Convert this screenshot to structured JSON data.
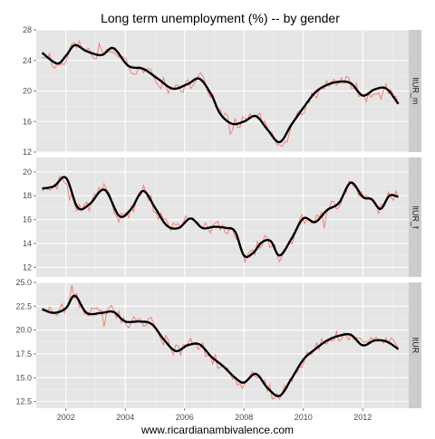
{
  "chart_data": {
    "type": "line",
    "title": "Long term unemployment (%) -- by gender",
    "caption": "www.ricardianambivalence.com",
    "xlabel": "",
    "ylabel": "",
    "x_range": [
      2001.0,
      2013.55
    ],
    "x_ticks": [
      2002,
      2004,
      2006,
      2008,
      2010,
      2012
    ],
    "x_tick_labels": [
      "2002",
      "2004",
      "2006",
      "2008",
      "2010",
      "2012"
    ],
    "grid": true,
    "facet_strip_position": "right",
    "colors": {
      "panel_bg": "#e5e5e5",
      "grid": "#ffffff",
      "strip_bg": "#cccccc",
      "raw": "#f8766d",
      "smooth": "#000000"
    },
    "panels": [
      {
        "name": "ltUR_m",
        "ylim": [
          12,
          28
        ],
        "y_ticks": [
          12,
          16,
          20,
          24,
          28
        ],
        "y_tick_labels": [
          "12",
          "16",
          "20",
          "24",
          "28"
        ],
        "knots": [
          [
            2001.2,
            25.0
          ],
          [
            2001.7,
            23.6
          ],
          [
            2002.0,
            24.6
          ],
          [
            2002.3,
            26.0
          ],
          [
            2002.7,
            25.2
          ],
          [
            2003.2,
            24.7
          ],
          [
            2003.6,
            25.6
          ],
          [
            2004.1,
            23.3
          ],
          [
            2004.6,
            22.9
          ],
          [
            2005.1,
            21.6
          ],
          [
            2005.6,
            20.3
          ],
          [
            2006.1,
            20.9
          ],
          [
            2006.5,
            21.6
          ],
          [
            2006.9,
            19.5
          ],
          [
            2007.2,
            17.0
          ],
          [
            2007.6,
            15.7
          ],
          [
            2008.0,
            16.0
          ],
          [
            2008.4,
            16.7
          ],
          [
            2008.8,
            14.9
          ],
          [
            2009.2,
            13.3
          ],
          [
            2009.6,
            15.6
          ],
          [
            2010.0,
            17.8
          ],
          [
            2010.4,
            19.8
          ],
          [
            2010.8,
            20.8
          ],
          [
            2011.2,
            21.2
          ],
          [
            2011.6,
            21.0
          ],
          [
            2012.0,
            19.4
          ],
          [
            2012.4,
            20.2
          ],
          [
            2012.8,
            20.3
          ],
          [
            2013.2,
            18.3
          ]
        ]
      },
      {
        "name": "ltUR_f",
        "ylim": [
          11.2,
          21.2
        ],
        "y_ticks": [
          12,
          14,
          16,
          18,
          20
        ],
        "y_tick_labels": [
          "12",
          "14",
          "16",
          "18",
          "20"
        ],
        "knots": [
          [
            2001.2,
            18.6
          ],
          [
            2001.6,
            18.8
          ],
          [
            2002.0,
            19.5
          ],
          [
            2002.4,
            17.0
          ],
          [
            2002.8,
            17.3
          ],
          [
            2003.3,
            18.5
          ],
          [
            2003.8,
            16.3
          ],
          [
            2004.2,
            16.9
          ],
          [
            2004.6,
            18.4
          ],
          [
            2005.0,
            17.0
          ],
          [
            2005.4,
            15.5
          ],
          [
            2005.8,
            15.3
          ],
          [
            2006.2,
            16.1
          ],
          [
            2006.6,
            15.3
          ],
          [
            2007.0,
            15.4
          ],
          [
            2007.4,
            15.3
          ],
          [
            2007.7,
            15.0
          ],
          [
            2008.0,
            13.0
          ],
          [
            2008.3,
            13.2
          ],
          [
            2008.6,
            14.1
          ],
          [
            2008.9,
            14.2
          ],
          [
            2009.2,
            13.0
          ],
          [
            2009.6,
            14.4
          ],
          [
            2010.0,
            16.1
          ],
          [
            2010.4,
            15.8
          ],
          [
            2010.8,
            16.8
          ],
          [
            2011.2,
            17.4
          ],
          [
            2011.6,
            19.1
          ],
          [
            2012.0,
            17.9
          ],
          [
            2012.3,
            17.7
          ],
          [
            2012.6,
            16.9
          ],
          [
            2012.9,
            18.0
          ],
          [
            2013.2,
            17.9
          ]
        ]
      },
      {
        "name": "ltUR",
        "ylim": [
          11.8,
          25.0
        ],
        "y_ticks": [
          12.5,
          15.0,
          17.5,
          20.0,
          22.5,
          25.0
        ],
        "y_tick_labels": [
          "12.5",
          "15.0",
          "17.5",
          "20.0",
          "22.5",
          "25.0"
        ],
        "knots": [
          [
            2001.2,
            22.2
          ],
          [
            2001.6,
            21.8
          ],
          [
            2002.0,
            22.3
          ],
          [
            2002.3,
            23.6
          ],
          [
            2002.7,
            21.8
          ],
          [
            2003.2,
            21.8
          ],
          [
            2003.6,
            21.9
          ],
          [
            2004.0,
            20.9
          ],
          [
            2004.5,
            20.9
          ],
          [
            2004.9,
            20.6
          ],
          [
            2005.3,
            19.0
          ],
          [
            2005.7,
            17.8
          ],
          [
            2006.1,
            18.4
          ],
          [
            2006.5,
            18.5
          ],
          [
            2006.9,
            17.2
          ],
          [
            2007.3,
            16.2
          ],
          [
            2007.7,
            15.0
          ],
          [
            2008.0,
            14.5
          ],
          [
            2008.4,
            15.4
          ],
          [
            2008.8,
            13.9
          ],
          [
            2009.2,
            13.1
          ],
          [
            2009.6,
            14.9
          ],
          [
            2010.0,
            16.9
          ],
          [
            2010.4,
            18.0
          ],
          [
            2010.8,
            18.9
          ],
          [
            2011.2,
            19.4
          ],
          [
            2011.6,
            19.5
          ],
          [
            2012.0,
            18.4
          ],
          [
            2012.4,
            18.9
          ],
          [
            2012.8,
            18.8
          ],
          [
            2013.2,
            18.0
          ]
        ]
      }
    ]
  }
}
